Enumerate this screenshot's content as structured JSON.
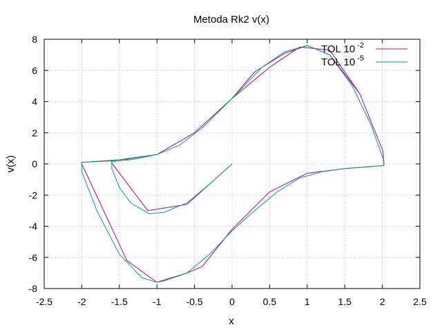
{
  "chart_data": {
    "type": "line",
    "title": "Metoda Rk2 v(x)",
    "xlabel": "x",
    "ylabel": "v(x)",
    "xlim": [
      -2.5,
      2.5
    ],
    "ylim": [
      -8,
      8
    ],
    "xticks": [
      -2.5,
      -2,
      -1.5,
      -1,
      -0.5,
      0,
      0.5,
      1,
      1.5,
      2,
      2.5
    ],
    "yticks": [
      -8,
      -6,
      -4,
      -2,
      0,
      2,
      4,
      6,
      8
    ],
    "xtick_labels": [
      "-2.5",
      "-2",
      "-1.5",
      "-1",
      "-0.5",
      "0",
      "0.5",
      "1",
      "1.5",
      "2",
      "2.5"
    ],
    "ytick_labels": [
      "-8",
      "-6",
      "-4",
      "-2",
      "0",
      "2",
      "4",
      "6",
      "8"
    ],
    "grid": true,
    "legend_position": "top-right",
    "series": [
      {
        "name": "TOL 10",
        "name_exponent": "-2",
        "color": "#a000a0",
        "x": [
          0.0,
          -0.6,
          -1.12,
          -1.6,
          -1.6,
          -1.0,
          -0.5,
          0.0,
          0.3,
          0.7,
          1.0,
          1.3,
          1.7,
          2.01,
          2.02,
          1.5,
          1.0,
          0.5,
          0.0,
          -0.4,
          -0.6,
          -1.0,
          -1.4,
          -2.0,
          -2.0,
          -1.6,
          -1.0,
          -0.5,
          0.0,
          0.5,
          0.9,
          1.3,
          1.7,
          2.01
        ],
        "y": [
          0.0,
          -2.6,
          -3.0,
          0.05,
          0.2,
          0.6,
          2.0,
          4.2,
          5.9,
          7.1,
          7.6,
          7.0,
          4.5,
          0.8,
          -0.1,
          -0.3,
          -0.6,
          -1.8,
          -4.2,
          -6.6,
          -7.0,
          -7.6,
          -6.2,
          0.0,
          0.1,
          0.2,
          0.6,
          2.0,
          4.2,
          6.2,
          7.5,
          7.3,
          4.5,
          0.8
        ]
      },
      {
        "name": "TOL 10",
        "name_exponent": "-5",
        "color": "#009e73",
        "x": [
          0.0,
          -0.3,
          -0.6,
          -0.9,
          -1.1,
          -1.35,
          -1.5,
          -1.6,
          -1.6,
          -1.3,
          -1.0,
          -0.7,
          -0.4,
          0.0,
          0.4,
          0.7,
          1.0,
          1.3,
          1.6,
          1.85,
          2.02,
          2.02,
          1.8,
          1.5,
          1.2,
          0.9,
          0.6,
          0.3,
          0.0,
          -0.3,
          -0.6,
          -0.9,
          -1.0,
          -1.2,
          -1.5,
          -1.8,
          -2.0,
          -2.0,
          -1.7,
          -1.4,
          -1.0,
          -0.7,
          -0.4,
          0.0,
          0.4,
          0.7,
          1.0,
          1.3,
          1.6,
          1.85,
          2.02
        ],
        "y": [
          0.0,
          -1.3,
          -2.5,
          -3.1,
          -3.2,
          -2.5,
          -1.5,
          -0.3,
          0.15,
          0.3,
          0.6,
          1.2,
          2.3,
          4.2,
          6.2,
          7.2,
          7.6,
          7.0,
          5.0,
          2.5,
          0.2,
          -0.1,
          -0.2,
          -0.3,
          -0.5,
          -0.9,
          -1.8,
          -3.0,
          -4.3,
          -5.8,
          -7.0,
          -7.5,
          -7.6,
          -7.3,
          -5.8,
          -3.0,
          -0.5,
          0.1,
          0.2,
          0.3,
          0.6,
          1.2,
          2.3,
          4.2,
          6.2,
          7.2,
          7.6,
          7.0,
          5.0,
          2.5,
          0.2
        ]
      }
    ]
  }
}
